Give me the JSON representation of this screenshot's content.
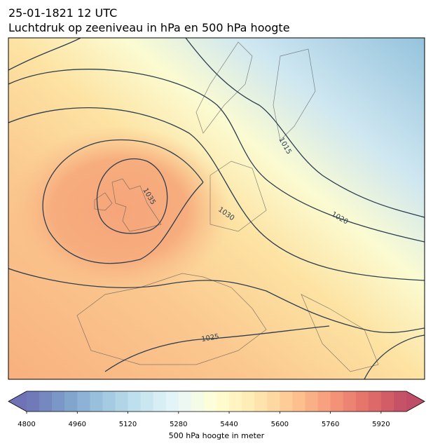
{
  "header": {
    "date": "25-01-1821 12 UTC",
    "title": "Luchtdruk op zeeniveau in hPa en 500 hPa hoogte"
  },
  "map": {
    "contour_labels": [
      1015,
      1020,
      1025,
      1030,
      1035
    ]
  },
  "colorbar": {
    "label": "500 hPa hoogte in meter",
    "range": [
      4800,
      6000
    ],
    "step": 40,
    "ticks": [
      4800,
      4960,
      5120,
      5280,
      5440,
      5600,
      5760,
      5920
    ]
  }
}
